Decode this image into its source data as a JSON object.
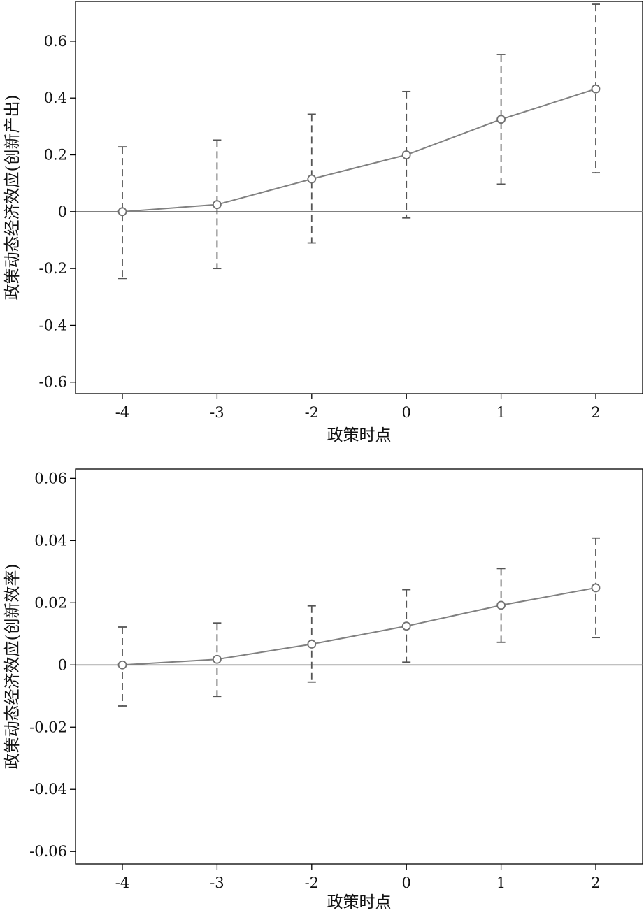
{
  "chart_data": [
    {
      "type": "line",
      "title": "",
      "xlabel": "政策时点",
      "ylabel": "政策动态经济效应(创新产出)",
      "categories": [
        "-4",
        "-3",
        "-2",
        "0",
        "1",
        "2"
      ],
      "yticks": [
        "0.6",
        "0.4",
        "0.2",
        "0",
        "-0.2",
        "-0.4",
        "-0.6"
      ],
      "ytick_values": [
        0.6,
        0.4,
        0.2,
        0,
        -0.2,
        -0.4,
        -0.6
      ],
      "ylim": [
        -0.64,
        0.74
      ],
      "series": [
        {
          "values": [
            0.0,
            0.025,
            0.115,
            0.2,
            0.325,
            0.432
          ],
          "ci_lower": [
            -0.235,
            -0.2,
            -0.11,
            -0.022,
            0.097,
            0.137
          ],
          "ci_upper": [
            0.228,
            0.252,
            0.343,
            0.423,
            0.553,
            0.73
          ]
        }
      ],
      "reference_line": 0,
      "grid": false,
      "colors": {
        "line": "#808080",
        "marker": "#707070",
        "ci": "#555555",
        "axis": "#000000",
        "refline": "#808080"
      }
    },
    {
      "type": "line",
      "title": "",
      "xlabel": "政策时点",
      "ylabel": "政策动态经济效应(创新效率)",
      "categories": [
        "-4",
        "-3",
        "-2",
        "0",
        "1",
        "2"
      ],
      "yticks": [
        "0.06",
        "0.04",
        "0.02",
        "0",
        "-0.02",
        "-0.04",
        "-0.06"
      ],
      "ytick_values": [
        0.06,
        0.04,
        0.02,
        0,
        -0.02,
        -0.04,
        -0.06
      ],
      "ylim": [
        -0.064,
        0.063
      ],
      "series": [
        {
          "values": [
            0.0,
            0.0018,
            0.0067,
            0.0125,
            0.0192,
            0.0248
          ],
          "ci_lower": [
            -0.0132,
            -0.0101,
            -0.0055,
            0.0009,
            0.0073,
            0.0088
          ],
          "ci_upper": [
            0.0122,
            0.0135,
            0.019,
            0.0242,
            0.031,
            0.0408
          ]
        }
      ],
      "reference_line": 0,
      "grid": false,
      "colors": {
        "line": "#808080",
        "marker": "#707070",
        "ci": "#555555",
        "axis": "#000000",
        "refline": "#808080"
      }
    }
  ]
}
